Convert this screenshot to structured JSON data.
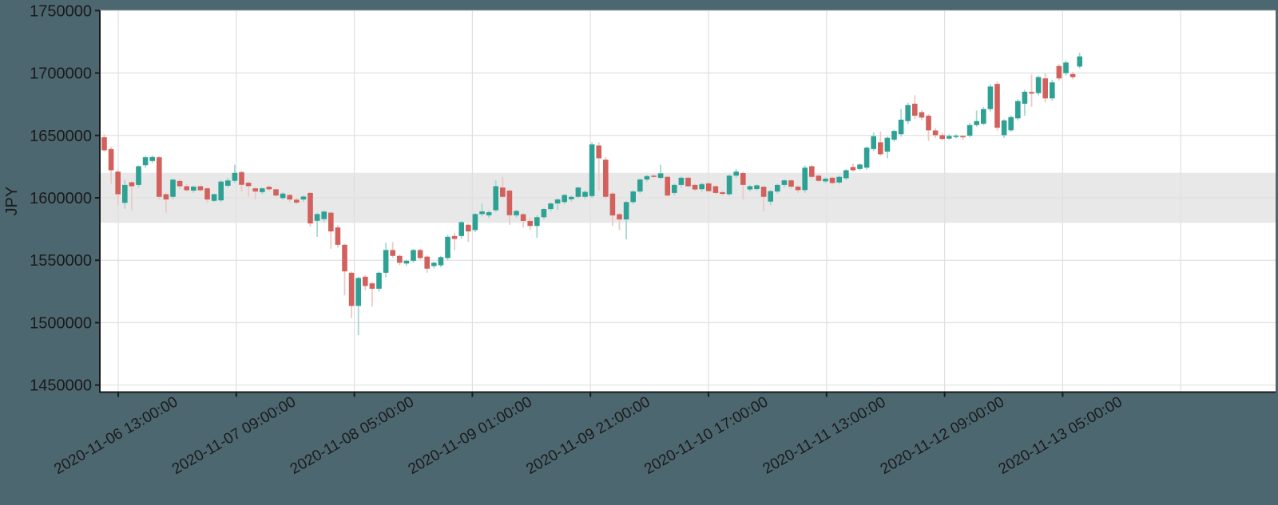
{
  "chart_data": {
    "type": "candlestick",
    "title": "",
    "ylabel": "JPY",
    "xlabel": "",
    "y_tick_labels": [
      "1750000",
      "1700000",
      "1650000",
      "1600000",
      "1550000",
      "1500000",
      "1450000"
    ],
    "y_tick_values": [
      1750000,
      1700000,
      1650000,
      1600000,
      1550000,
      1500000,
      1450000
    ],
    "x_tick_labels": [
      "2020-11-06 13:00:00",
      "2020-11-07 09:00:00",
      "2020-11-08 05:00:00",
      "2020-11-09 01:00:00",
      "2020-11-09 21:00:00",
      "2020-11-10 17:00:00",
      "2020-11-11 13:00:00",
      "2020-11-12 09:00:00",
      "2020-11-13 05:00:00"
    ],
    "ylim": [
      1444000,
      1752000
    ],
    "grid": true,
    "legend": "none",
    "highlight_band": {
      "from": 1580000,
      "to": 1620000,
      "color": "#e8e8e8"
    },
    "colors": {
      "up_body": "#2da194",
      "down_body": "#d2605c",
      "up_wick": "#a7d8d1",
      "down_wick": "#edc9c5",
      "plot_background": "#ffffff",
      "outer_background": "#4d6770",
      "gridline": "#e0e0e0",
      "axis": "#1a1a1a",
      "band": "#e8e8e8"
    },
    "candles_ohlc": [
      [
        1648500,
        1651000,
        1637000,
        1638100
      ],
      [
        1639100,
        1641000,
        1611400,
        1622100
      ],
      [
        1621000,
        1622500,
        1594400,
        1602900
      ],
      [
        1596000,
        1614600,
        1591200,
        1610300
      ],
      [
        1612500,
        1613500,
        1590200,
        1609300
      ],
      [
        1610300,
        1626000,
        1608000,
        1625300
      ],
      [
        1626100,
        1633500,
        1624000,
        1632500
      ],
      [
        1629500,
        1634000,
        1628000,
        1632700
      ],
      [
        1632500,
        1633500,
        1598700,
        1600800
      ],
      [
        1602900,
        1604000,
        1588100,
        1598700
      ],
      [
        1600800,
        1615600,
        1599000,
        1614600
      ],
      [
        1613500,
        1615000,
        1607000,
        1609300
      ],
      [
        1609300,
        1611000,
        1605000,
        1606100
      ],
      [
        1605800,
        1610000,
        1604000,
        1609000
      ],
      [
        1609300,
        1610500,
        1605000,
        1606100
      ],
      [
        1607600,
        1608600,
        1596000,
        1598700
      ],
      [
        1597600,
        1603500,
        1596500,
        1602900
      ],
      [
        1598000,
        1614000,
        1596800,
        1613000
      ],
      [
        1609700,
        1616100,
        1608300,
        1613900
      ],
      [
        1613600,
        1626400,
        1612000,
        1620000
      ],
      [
        1620600,
        1621600,
        1605100,
        1610400
      ],
      [
        1612100,
        1613100,
        1600800,
        1609400
      ],
      [
        1607600,
        1608600,
        1598700,
        1605100
      ],
      [
        1604600,
        1608500,
        1603000,
        1607600
      ],
      [
        1608900,
        1610000,
        1605500,
        1606800
      ],
      [
        1606800,
        1607800,
        1600500,
        1601900
      ],
      [
        1599800,
        1604500,
        1598500,
        1603400
      ],
      [
        1602300,
        1603300,
        1596500,
        1598700
      ],
      [
        1598500,
        1600000,
        1594500,
        1596200
      ],
      [
        1598700,
        1602000,
        1597000,
        1601000
      ],
      [
        1603900,
        1604900,
        1577000,
        1579500
      ],
      [
        1581600,
        1588000,
        1568800,
        1587000
      ],
      [
        1583000,
        1590000,
        1581000,
        1589000
      ],
      [
        1588100,
        1589100,
        1559200,
        1573100
      ],
      [
        1576300,
        1578000,
        1560000,
        1562400
      ],
      [
        1562400,
        1563400,
        1521900,
        1541100
      ],
      [
        1540000,
        1541000,
        1503800,
        1513400
      ],
      [
        1513400,
        1537000,
        1490000,
        1535800
      ],
      [
        1536800,
        1538000,
        1526000,
        1529400
      ],
      [
        1531500,
        1532500,
        1513000,
        1527200
      ],
      [
        1527200,
        1541000,
        1525000,
        1540000
      ],
      [
        1540000,
        1564000,
        1536400,
        1558200
      ],
      [
        1558200,
        1564500,
        1552000,
        1553500
      ],
      [
        1553500,
        1554500,
        1546000,
        1548000
      ],
      [
        1547400,
        1550500,
        1545500,
        1549600
      ],
      [
        1549600,
        1559000,
        1548000,
        1558200
      ],
      [
        1558200,
        1559200,
        1550500,
        1551800
      ],
      [
        1552900,
        1553900,
        1540000,
        1543300
      ],
      [
        1545400,
        1548900,
        1543500,
        1548000
      ],
      [
        1546000,
        1553500,
        1544500,
        1552500
      ],
      [
        1551800,
        1570500,
        1550000,
        1568800
      ],
      [
        1569400,
        1572000,
        1558000,
        1567100
      ],
      [
        1569400,
        1581500,
        1567500,
        1580500
      ],
      [
        1578400,
        1579400,
        1564600,
        1573100
      ],
      [
        1574200,
        1588000,
        1572500,
        1587000
      ],
      [
        1587000,
        1595400,
        1585000,
        1589100
      ],
      [
        1586000,
        1590000,
        1584000,
        1588500
      ],
      [
        1590100,
        1614000,
        1588500,
        1609300
      ],
      [
        1608300,
        1616800,
        1599800,
        1600800
      ],
      [
        1605800,
        1606800,
        1578400,
        1586100
      ],
      [
        1586000,
        1590500,
        1584000,
        1589500
      ],
      [
        1586900,
        1588000,
        1576300,
        1581500
      ],
      [
        1581500,
        1584000,
        1574000,
        1577500
      ],
      [
        1577500,
        1586000,
        1568000,
        1584500
      ],
      [
        1584500,
        1592000,
        1583000,
        1591000
      ],
      [
        1591000,
        1596600,
        1589000,
        1595500
      ],
      [
        1595500,
        1599700,
        1590200,
        1598700
      ],
      [
        1596600,
        1603300,
        1595000,
        1602300
      ],
      [
        1598900,
        1602000,
        1597000,
        1600800
      ],
      [
        1600800,
        1609000,
        1599500,
        1608300
      ],
      [
        1600800,
        1606000,
        1599000,
        1604800
      ],
      [
        1601400,
        1644500,
        1600000,
        1642800
      ],
      [
        1641900,
        1644500,
        1606000,
        1631700
      ],
      [
        1630600,
        1632600,
        1599000,
        1600800
      ],
      [
        1603400,
        1604400,
        1577400,
        1585900
      ],
      [
        1586900,
        1588000,
        1574200,
        1582700
      ],
      [
        1582700,
        1597600,
        1566700,
        1596600
      ],
      [
        1596600,
        1606100,
        1595000,
        1605100
      ],
      [
        1605100,
        1615700,
        1603500,
        1614700
      ],
      [
        1614700,
        1618400,
        1613000,
        1617400
      ],
      [
        1617800,
        1618800,
        1615500,
        1616800
      ],
      [
        1616000,
        1626400,
        1614500,
        1619600
      ],
      [
        1616800,
        1617800,
        1600900,
        1601900
      ],
      [
        1603900,
        1611300,
        1602000,
        1610300
      ],
      [
        1610300,
        1617100,
        1608500,
        1616100
      ],
      [
        1616100,
        1617100,
        1608300,
        1609300
      ],
      [
        1610300,
        1611300,
        1605700,
        1606700
      ],
      [
        1606900,
        1612000,
        1605000,
        1611000
      ],
      [
        1611600,
        1612600,
        1604400,
        1605400
      ],
      [
        1609300,
        1610300,
        1602900,
        1603900
      ],
      [
        1604500,
        1606000,
        1601500,
        1603200
      ],
      [
        1602900,
        1618800,
        1601500,
        1617800
      ],
      [
        1617800,
        1623100,
        1616000,
        1621000
      ],
      [
        1619800,
        1620800,
        1598700,
        1610300
      ],
      [
        1606700,
        1610300,
        1605000,
        1609300
      ],
      [
        1607000,
        1611000,
        1605500,
        1610000
      ],
      [
        1608900,
        1609900,
        1589100,
        1600800
      ],
      [
        1597000,
        1606400,
        1594000,
        1605400
      ],
      [
        1605100,
        1611300,
        1603500,
        1610300
      ],
      [
        1610300,
        1615000,
        1608500,
        1614000
      ],
      [
        1614000,
        1615000,
        1607500,
        1609000
      ],
      [
        1609000,
        1610000,
        1604000,
        1606200
      ],
      [
        1606200,
        1625900,
        1604000,
        1624200
      ],
      [
        1625300,
        1626300,
        1615500,
        1616800
      ],
      [
        1617800,
        1618800,
        1612500,
        1613600
      ],
      [
        1613200,
        1616300,
        1611800,
        1615300
      ],
      [
        1616100,
        1617100,
        1610800,
        1611900
      ],
      [
        1612300,
        1617800,
        1611000,
        1616800
      ],
      [
        1615700,
        1623100,
        1614200,
        1622100
      ],
      [
        1624700,
        1627400,
        1621000,
        1622100
      ],
      [
        1623100,
        1627700,
        1622000,
        1626700
      ],
      [
        1624200,
        1641200,
        1622500,
        1640200
      ],
      [
        1639100,
        1652400,
        1637500,
        1649400
      ],
      [
        1644500,
        1653000,
        1633500,
        1634900
      ],
      [
        1637000,
        1649100,
        1631700,
        1648100
      ],
      [
        1646600,
        1654600,
        1645000,
        1653600
      ],
      [
        1651000,
        1671100,
        1649000,
        1662600
      ],
      [
        1661500,
        1676300,
        1659000,
        1674300
      ],
      [
        1675400,
        1682200,
        1663000,
        1665800
      ],
      [
        1668600,
        1670000,
        1662000,
        1664300
      ],
      [
        1665800,
        1667000,
        1645500,
        1654100
      ],
      [
        1654000,
        1656000,
        1648000,
        1650200
      ],
      [
        1650200,
        1652000,
        1646000,
        1647200
      ],
      [
        1647500,
        1651000,
        1646500,
        1649500
      ],
      [
        1648800,
        1651000,
        1647500,
        1649800
      ],
      [
        1649500,
        1650500,
        1646500,
        1648600
      ],
      [
        1649800,
        1660000,
        1648500,
        1658300
      ],
      [
        1658300,
        1670000,
        1657000,
        1661500
      ],
      [
        1659400,
        1673000,
        1658000,
        1671100
      ],
      [
        1671100,
        1691000,
        1669000,
        1689200
      ],
      [
        1691300,
        1693000,
        1654000,
        1656200
      ],
      [
        1650200,
        1663000,
        1648000,
        1662000
      ],
      [
        1654100,
        1666000,
        1653000,
        1664700
      ],
      [
        1663700,
        1679000,
        1662000,
        1677500
      ],
      [
        1675400,
        1686500,
        1665800,
        1685000
      ],
      [
        1684800,
        1698800,
        1673000,
        1683500
      ],
      [
        1683900,
        1698000,
        1682000,
        1696700
      ],
      [
        1695700,
        1699900,
        1676500,
        1679700
      ],
      [
        1679700,
        1694500,
        1678000,
        1692500
      ],
      [
        1705600,
        1707000,
        1694000,
        1695700
      ],
      [
        1699900,
        1710000,
        1698000,
        1708400
      ],
      [
        1699200,
        1701000,
        1695000,
        1696700
      ],
      [
        1705200,
        1716300,
        1703600,
        1713300
      ]
    ]
  }
}
